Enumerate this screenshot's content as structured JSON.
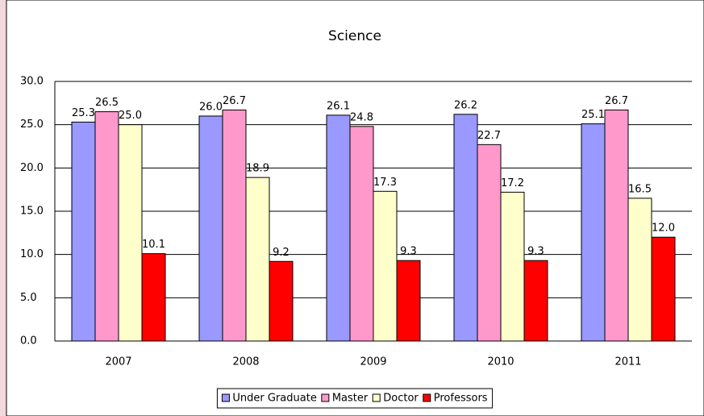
{
  "chart_data": {
    "type": "bar",
    "title": "Science",
    "categories": [
      "2007",
      "2008",
      "2009",
      "2010",
      "2011"
    ],
    "series": [
      {
        "name": "Under Graduate",
        "color": "#9999ff",
        "values": [
          25.3,
          26.0,
          26.1,
          26.2,
          25.1
        ],
        "value_labels": [
          "25.3",
          "26.0",
          "26.1",
          "26.2",
          "25.1"
        ]
      },
      {
        "name": "Master",
        "color": "#ff99cc",
        "values": [
          26.5,
          26.7,
          24.8,
          22.7,
          26.7
        ],
        "value_labels": [
          "26.5",
          "26.7",
          "24.8",
          "22.7",
          "26.7"
        ]
      },
      {
        "name": "Doctor",
        "color": "#ffffcc",
        "values": [
          25.0,
          18.9,
          17.3,
          17.2,
          16.5
        ],
        "value_labels": [
          "25.0",
          "18.9",
          "17.3",
          "17.2",
          "16.5"
        ]
      },
      {
        "name": "Professors",
        "color": "#ff0000",
        "values": [
          10.1,
          9.2,
          9.3,
          9.3,
          12.0
        ],
        "value_labels": [
          "10.1",
          "9.2",
          "9.3",
          "9.3",
          "12.0"
        ]
      }
    ],
    "ylim": [
      0,
      30
    ],
    "yticks": [
      {
        "value": 0,
        "label": "0.0"
      },
      {
        "value": 5,
        "label": "5.0"
      },
      {
        "value": 10,
        "label": "10.0"
      },
      {
        "value": 15,
        "label": "15.0"
      },
      {
        "value": 20,
        "label": "20.0"
      },
      {
        "value": 25,
        "label": "25.0"
      },
      {
        "value": 30,
        "label": "30.0"
      }
    ],
    "grid": true,
    "legend": "bottom"
  }
}
